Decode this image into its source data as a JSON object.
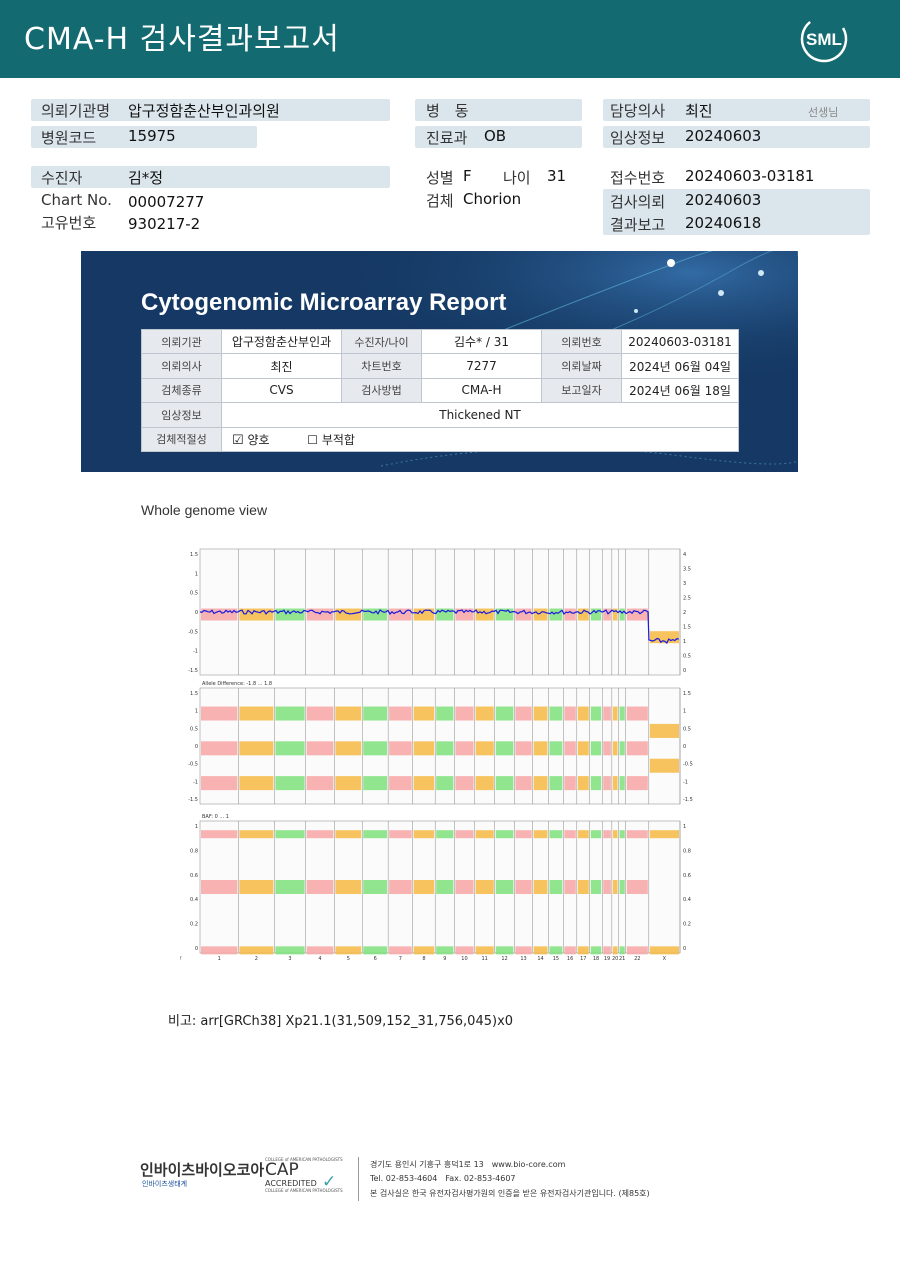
{
  "header": {
    "title": "CMA-H 검사결과보고서",
    "logo_text": "SML"
  },
  "info": {
    "requester_label": "의뢰기관명",
    "requester": "압구정함춘산부인과의원",
    "hospital_code_label": "병원코드",
    "hospital_code": "15975",
    "ward_label": "병　동",
    "ward": "",
    "dept_label": "진료과",
    "dept": "OB",
    "doctor_label": "담당의사",
    "doctor": "최진",
    "doctor_suffix": "선생님",
    "clinical_label": "임상정보",
    "clinical": "20240603",
    "patient_label": "수진자",
    "patient": "김*정",
    "chart_label": "Chart No.",
    "chart": "00007277",
    "unique_label": "고유번호",
    "unique": "930217-2",
    "sex_label": "성별",
    "sex": "F",
    "age_label": "나이",
    "age": "31",
    "specimen_label": "검체",
    "specimen": "Chorion",
    "receipt_label": "접수번호",
    "receipt": "20240603-03181",
    "test_req_label": "검사의뢰",
    "test_req": "20240603",
    "result_label": "결과보고",
    "result": "20240618"
  },
  "report": {
    "title": "Cytogenomic Microarray Report",
    "rows": [
      [
        "의뢰기관",
        "압구정함춘산부인과",
        "수진자/나이",
        "김수* / 31",
        "의뢰번호",
        "20240603-03181"
      ],
      [
        "의뢰의사",
        "최진",
        "차트번호",
        "7277",
        "의뢰날짜",
        "2024년 06월 04일"
      ],
      [
        "검체종류",
        "CVS",
        "검사방법",
        "CMA-H",
        "보고일자",
        "2024년 06월 18일"
      ]
    ],
    "clinical_label": "임상정보",
    "clinical_value": "Thickened NT",
    "adequacy_label": "검체적절성",
    "adequacy_ok": "양호",
    "adequacy_bad": "부적합"
  },
  "genome": {
    "title": "Whole genome view",
    "panel2_label": "Allele Difference: -1.8 ... 1.8",
    "panel3_label": "BAF: 0 ... 1",
    "chromosomes": [
      "1",
      "2",
      "3",
      "4",
      "5",
      "6",
      "7",
      "8",
      "9",
      "10",
      "11",
      "12",
      "13",
      "14",
      "15",
      "16",
      "17",
      "18",
      "19",
      "20",
      "21",
      "22",
      "X",
      "Y"
    ],
    "p1_left_ticks": [
      "1.5",
      "1",
      "0.5",
      "0",
      "-0.5",
      "-1",
      "-1.5"
    ],
    "p1_right_ticks": [
      "4",
      "3.5",
      "3",
      "2.5",
      "2",
      "1.5",
      "1",
      "0.5",
      "0"
    ],
    "p2_left_ticks": [
      "1.5",
      "1",
      "0.5",
      "0",
      "-0.5",
      "-1",
      "-1.5"
    ],
    "p2_right_ticks": [
      "1.5",
      "1",
      "0.5",
      "0",
      "-0.5",
      "-1",
      "-1.5"
    ],
    "p3_left_ticks": [
      "1",
      "0.8",
      "0.6",
      "0.4",
      "0.2",
      "0"
    ],
    "p3_right_ticks": [
      "1",
      "0.8",
      "0.6",
      "0.4",
      "0.2",
      "0"
    ],
    "colors": {
      "pink": "#f7a5a5",
      "orange": "#f5b942",
      "green": "#7ee07a",
      "blue": "#1a1ae0"
    }
  },
  "note": "비고: arr[GRCh38] Xp21.1(31,509,152_31,756,045)x0",
  "footer": {
    "company": "인바이츠바이오코아",
    "company_sub": "인바이츠생태계",
    "cap_top": "COLLEGE of AMERICAN PATHOLOGISTS",
    "cap": "CAP",
    "cap_acc": "ACCREDITED",
    "cap_bottom": "COLLEGE of AMERICAN PATHOLOGISTS",
    "address": "경기도 용인시 기흥구 흥덕1로 13　www.bio-core.com",
    "tel": "Tel. 02-853-4604　Fax. 02-853-4607",
    "cert": "본 검사실은 한국 유전자검사평가원의 인증을 받은 유전자검사기관입니다. (제85호)"
  }
}
